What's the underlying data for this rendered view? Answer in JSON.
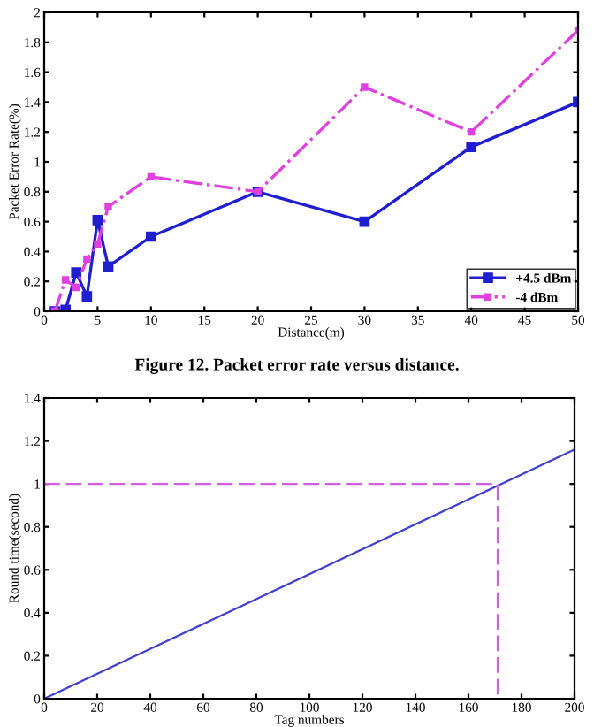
{
  "chart_data": [
    {
      "type": "line",
      "xlabel": "Distance(m)",
      "ylabel": "Packet Error Rate(%)",
      "xlim": [
        0,
        50
      ],
      "xticks": [
        0,
        5,
        10,
        15,
        20,
        25,
        30,
        35,
        40,
        45,
        50
      ],
      "ylim": [
        0,
        2
      ],
      "yticks": [
        0,
        0.2,
        0.4,
        0.6,
        0.8,
        1,
        1.2,
        1.4,
        1.6,
        1.8,
        2
      ],
      "grid": false,
      "legend": "bottom right",
      "marker": "square",
      "x": [
        1,
        2,
        3,
        4,
        5,
        6,
        10,
        20,
        30,
        40,
        50
      ],
      "series": [
        {
          "name": "+4.5 dBm",
          "color": "#1f1fd0",
          "line_style": "solid",
          "values": [
            0,
            0.01,
            0.26,
            0.1,
            0.61,
            0.3,
            0.5,
            0.8,
            0.6,
            1.1,
            1.4
          ]
        },
        {
          "name": "-4 dBm",
          "color": "#e040e0",
          "line_style": "dashdot",
          "values": [
            0,
            0.21,
            0.16,
            0.35,
            0.45,
            0.7,
            0.9,
            0.8,
            1.5,
            1.2,
            1.88
          ]
        }
      ],
      "annotations": [
        "Figure 12. Packet error rate versus distance."
      ]
    },
    {
      "type": "line",
      "xlabel": "Tag numbers",
      "ylabel": "Round time(second)",
      "xlim": [
        0,
        200
      ],
      "xticks": [
        0,
        20,
        40,
        60,
        80,
        100,
        120,
        140,
        160,
        180,
        200
      ],
      "ylim": [
        0,
        1.4
      ],
      "yticks": [
        0,
        0.2,
        0.4,
        0.6,
        0.8,
        1,
        1.2,
        1.4
      ],
      "grid": false,
      "legend": false,
      "marker": "none",
      "series": [
        {
          "color": "#4040d0",
          "line_style": "solid",
          "x": [
            0,
            200
          ],
          "values": [
            0,
            1.16
          ]
        },
        {
          "color": "#d060e0",
          "line_style": "dashed",
          "x": [
            0,
            171,
            171
          ],
          "values": [
            1,
            1,
            0
          ]
        }
      ]
    }
  ]
}
